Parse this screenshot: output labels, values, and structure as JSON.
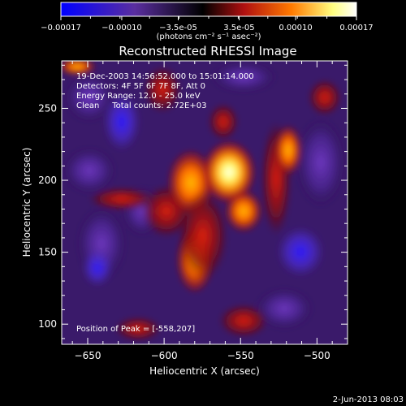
{
  "colorbar": {
    "ticks": [
      "-0.00017",
      "-0.00010",
      "-3.5e-05",
      "3.5e-05",
      "0.00010",
      "0.00017"
    ],
    "tick_values": [
      -0.00017,
      -0.0001,
      -3.5e-05,
      3.5e-05,
      0.0001,
      0.00017
    ],
    "range": [
      -0.00017,
      0.00017
    ],
    "unit_label": "(photons cm⁻² s⁻¹ asec⁻²)"
  },
  "chart_data": {
    "type": "heatmap",
    "title": "Reconstructed RHESSI Image",
    "xlabel": "Heliocentric X (arcsec)",
    "ylabel": "Heliocentric Y (arcsec)",
    "xlim": [
      -667,
      -480
    ],
    "ylim": [
      86,
      283
    ],
    "xticks": [
      -650,
      -600,
      -550,
      -500
    ],
    "yticks": [
      100,
      150,
      200,
      250
    ],
    "annotations": {
      "time": "19-Dec-2003 14:56:52.000 to 15:01:14.000",
      "detectors": "Detectors: 4F 5F 6F 7F 8F, Att 0",
      "energy": "Energy Range: 12.0 - 25.0 keV",
      "clean": "Clean     Total counts: 2.72E+03",
      "peak": "Position of Peak = [-558,207]"
    },
    "peak": [
      -558,
      207
    ],
    "colormap": [
      "#0000ff",
      "#5f2a9e",
      "#000000",
      "#a01414",
      "#ff8c00",
      "#ffff8a",
      "#ffffff"
    ]
  },
  "footer": {
    "date": "2-Jun-2013 08:03"
  }
}
